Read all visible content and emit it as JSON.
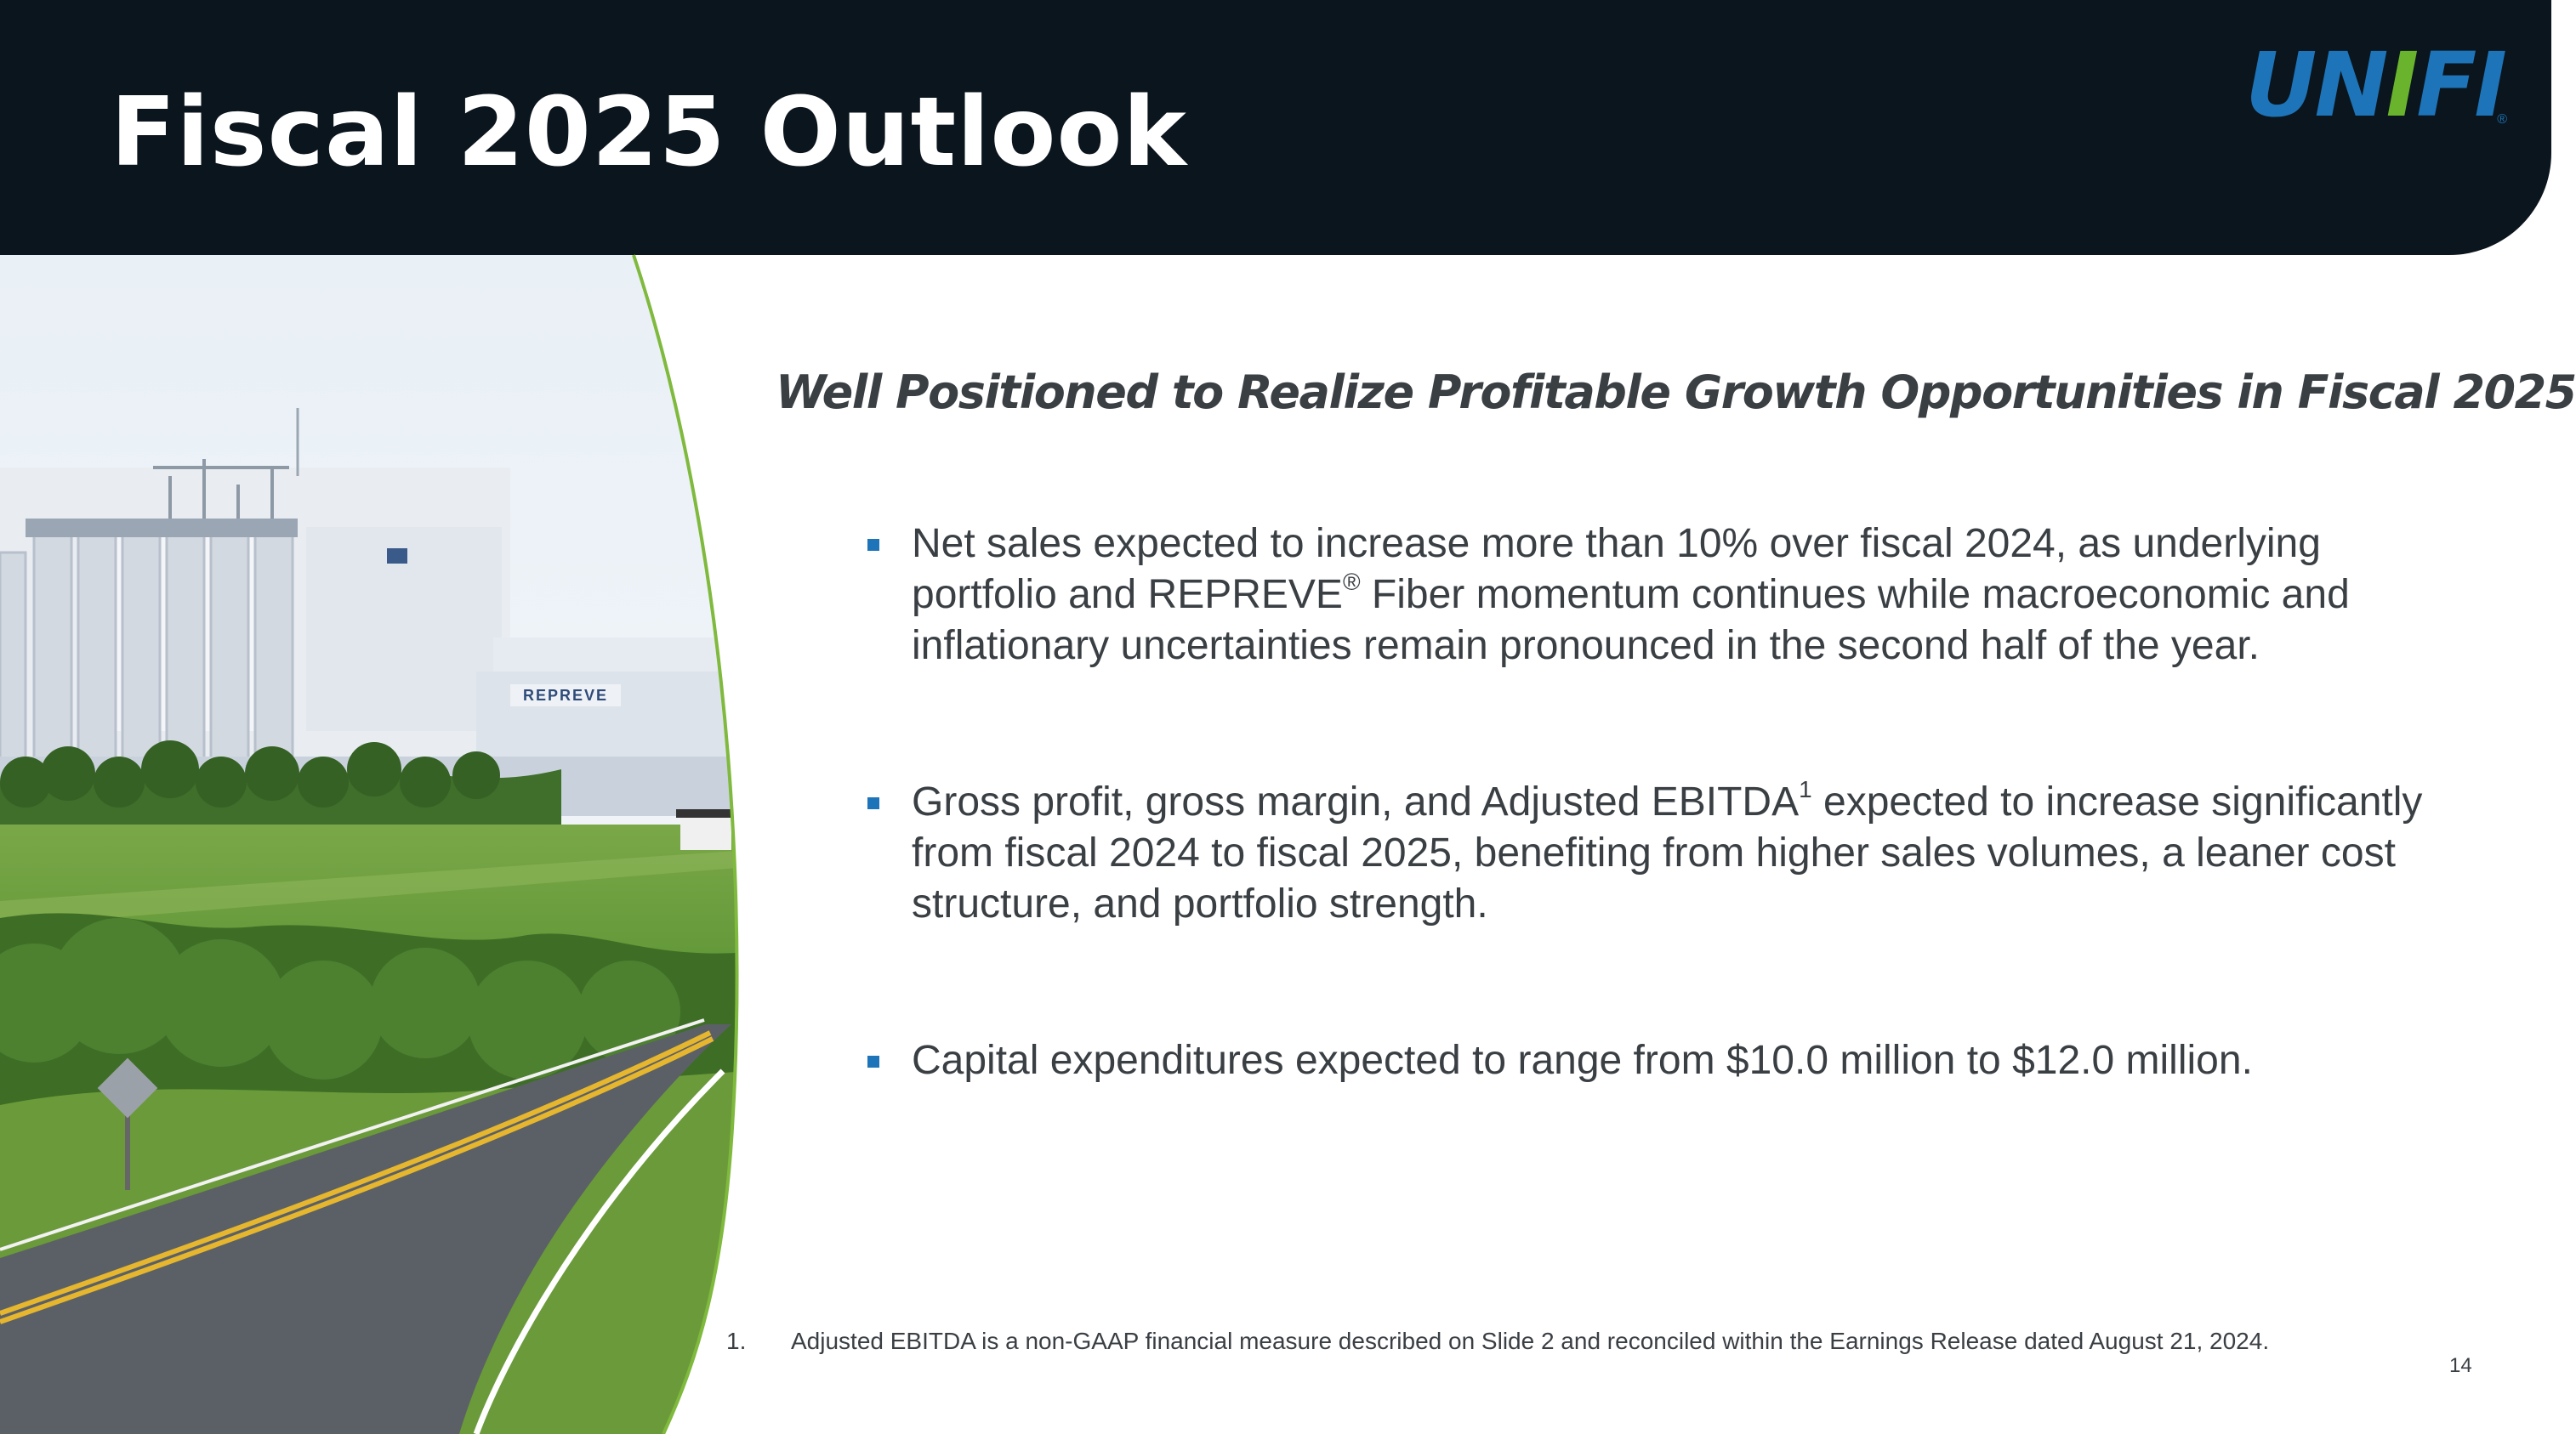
{
  "slide": {
    "title": "Fiscal 2025 Outlook",
    "logo": {
      "text_u": "UN",
      "text_i": "I",
      "text_rest": "FI",
      "registered": "®"
    },
    "subtitle": "Well Positioned to Realize Profitable Growth Opportunities in Fiscal 2025",
    "bullets": [
      {
        "text_before": "Net sales expected to increase more than 10% over fiscal 2024, as underlying portfolio and REPREVE",
        "sup": "®",
        "text_after": " Fiber momentum continues while macroeconomic and inflationary uncertainties remain pronounced in the second half of the year."
      },
      {
        "text_before": "Gross profit, gross margin, and Adjusted EBITDA",
        "sup": "1",
        "text_after": " expected to increase significantly from fiscal 2024 to fiscal 2025, benefiting from higher sales volumes, a leaner cost structure, and portfolio strength."
      },
      {
        "text_before": "Capital expenditures expected to range from $10.0 million to $12.0 million.",
        "sup": "",
        "text_after": ""
      }
    ],
    "footnote": {
      "number": "1.",
      "text": "Adjusted EBITDA is a non-GAAP financial measure described on Slide 2 and reconciled within the Earnings Release dated August 21, 2024."
    },
    "building_sign": "REPREVE",
    "page_number": "14",
    "colors": {
      "header_bg": "#0b151d",
      "brand_blue": "#1d74b8",
      "brand_green": "#6ab42d",
      "body_text": "#3a3f44"
    }
  }
}
